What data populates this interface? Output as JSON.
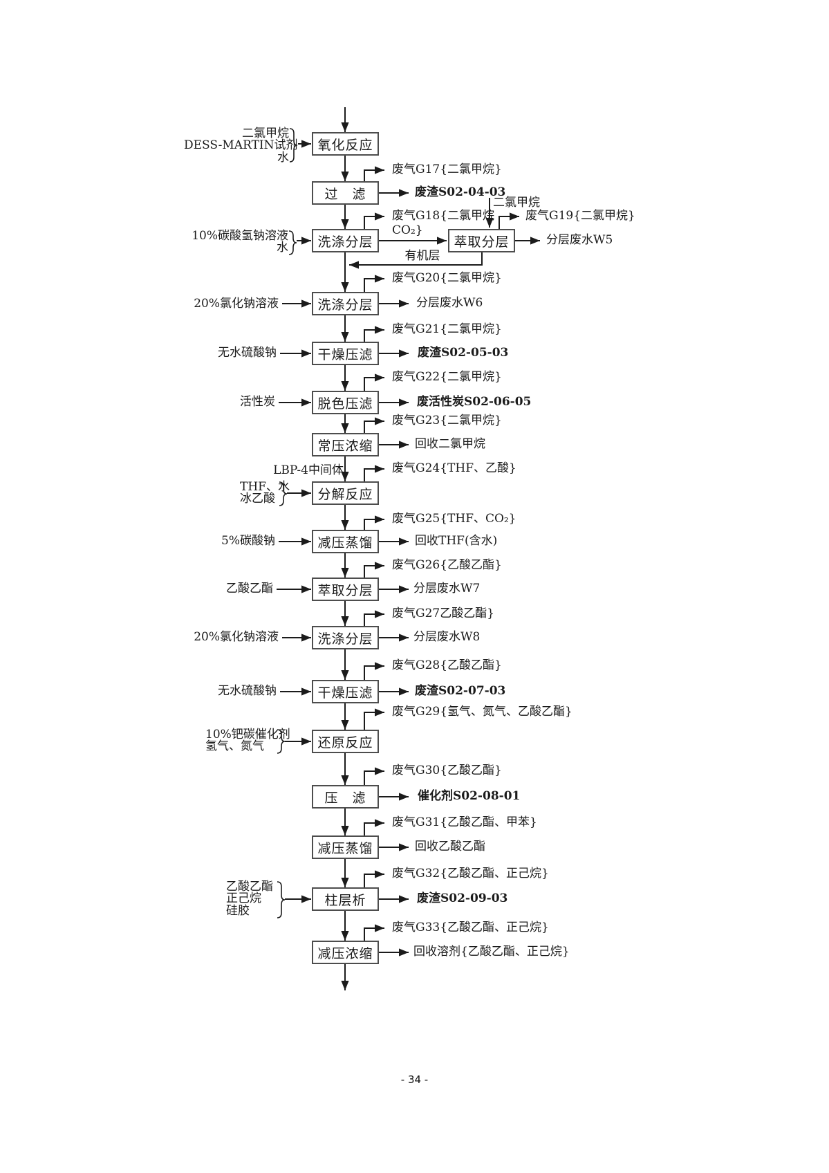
{
  "page_footer": "- 34 -",
  "diagram": {
    "process_nodes": {
      "b1": "氧化反应",
      "b2": "过　滤",
      "b3": "洗涤分层",
      "bx": "萃取分层",
      "b4": "洗涤分层",
      "b5": "干燥压滤",
      "b6": "脱色压滤",
      "b7": "常压浓缩",
      "b8": "分解反应",
      "b9": "减压蒸馏",
      "b10": "萃取分层",
      "b11": "洗涤分层",
      "b12": "干燥压滤",
      "b13": "还原反应",
      "b14": "压　滤",
      "b15": "减压蒸馏",
      "b16": "柱层析",
      "b17": "减压浓缩"
    },
    "gas_outputs": {
      "g17": [
        "废气G17{二氯甲烷}"
      ],
      "g18": [
        "废气G18{二氯甲烷",
        "CO₂}"
      ],
      "g19": [
        "废气G19{二氯甲烷}"
      ],
      "g20": [
        "废气G20{二氯甲烷}"
      ],
      "g21": [
        "废气G21{二氯甲烷}"
      ],
      "g22": [
        "废气G22{二氯甲烷}"
      ],
      "g23": [
        "废气G23{二氯甲烷}"
      ],
      "g24": [
        "废气G24{THF、乙酸}"
      ],
      "g25": [
        "废气G25{THF、CO₂}"
      ],
      "g26": [
        "废气G26{乙酸乙酯}"
      ],
      "g27": [
        "废气G27乙酸乙酯}"
      ],
      "g28": [
        "废气G28{乙酸乙酯}"
      ],
      "g29": [
        "废气G29{氢气、氮气、乙酸乙酯}"
      ],
      "g30": [
        "废气G30{乙酸乙酯}"
      ],
      "g31": [
        "废气G31{乙酸乙酯、甲苯}"
      ],
      "g32": [
        "废气G32{乙酸乙酯、正己烷}"
      ],
      "g33": [
        "废气G33{乙酸乙酯、正己烷}"
      ]
    },
    "side_outputs": {
      "r1": {
        "text": "废渣S02-04-03",
        "bold": true
      },
      "r2": {
        "text": "分层废水W5",
        "bold": false
      },
      "r3": {
        "text": "分层废水W6",
        "bold": false
      },
      "r4": {
        "text": "废渣S02-05-03",
        "bold": true
      },
      "r5": {
        "text": "废活性炭S02-06-05",
        "bold": true
      },
      "r6": {
        "text": "回收二氯甲烷",
        "bold": false
      },
      "r7": {
        "text": "回收THF(含水)",
        "bold": false
      },
      "r8": {
        "text": "分层废水W7",
        "bold": false
      },
      "r9": {
        "text": "分层废水W8",
        "bold": false
      },
      "r10": {
        "text": "废渣S02-07-03",
        "bold": true
      },
      "r11": {
        "text": "催化剂S02-08-01",
        "bold": true
      },
      "r12": {
        "text": "回收乙酸乙酯",
        "bold": false
      },
      "r13": {
        "text": "废渣S02-09-03",
        "bold": true
      },
      "r14": {
        "text": "回收溶剂{乙酸乙酯、正己烷}",
        "bold": false
      }
    },
    "inputs": {
      "i1": {
        "lines": [
          "二氯甲烷",
          "DESS-MARTIN试剂",
          "水"
        ]
      },
      "i2": {
        "lines": [
          "10%碳酸氢钠溶液",
          "水"
        ]
      },
      "i3": {
        "lines": [
          "20%氯化钠溶液"
        ]
      },
      "i4": {
        "lines": [
          "无水硫酸钠"
        ]
      },
      "i5": {
        "lines": [
          "活性炭"
        ]
      },
      "i6": {
        "lines": [
          "THF、水",
          "冰乙酸"
        ]
      },
      "i7": {
        "lines": [
          "5%碳酸钠"
        ]
      },
      "i8": {
        "lines": [
          "乙酸乙酯"
        ]
      },
      "i9": {
        "lines": [
          "20%氯化钠溶液"
        ]
      },
      "i10": {
        "lines": [
          "无水硫酸钠"
        ]
      },
      "i11": {
        "lines": [
          "10%钯碳催化剂",
          "氢气、氮气"
        ]
      },
      "i12": {
        "lines": [
          "乙酸乙酯",
          "正己烷",
          "硅胶"
        ]
      }
    },
    "edge_labels": {
      "organic_layer": "有机层",
      "intermediate": "LBP-4中间体",
      "dcm_feed": "二氯甲烷"
    },
    "colors": {
      "line": "#1b1b1b",
      "box_border": "#4d4d4d",
      "background": "#ffffff"
    }
  }
}
